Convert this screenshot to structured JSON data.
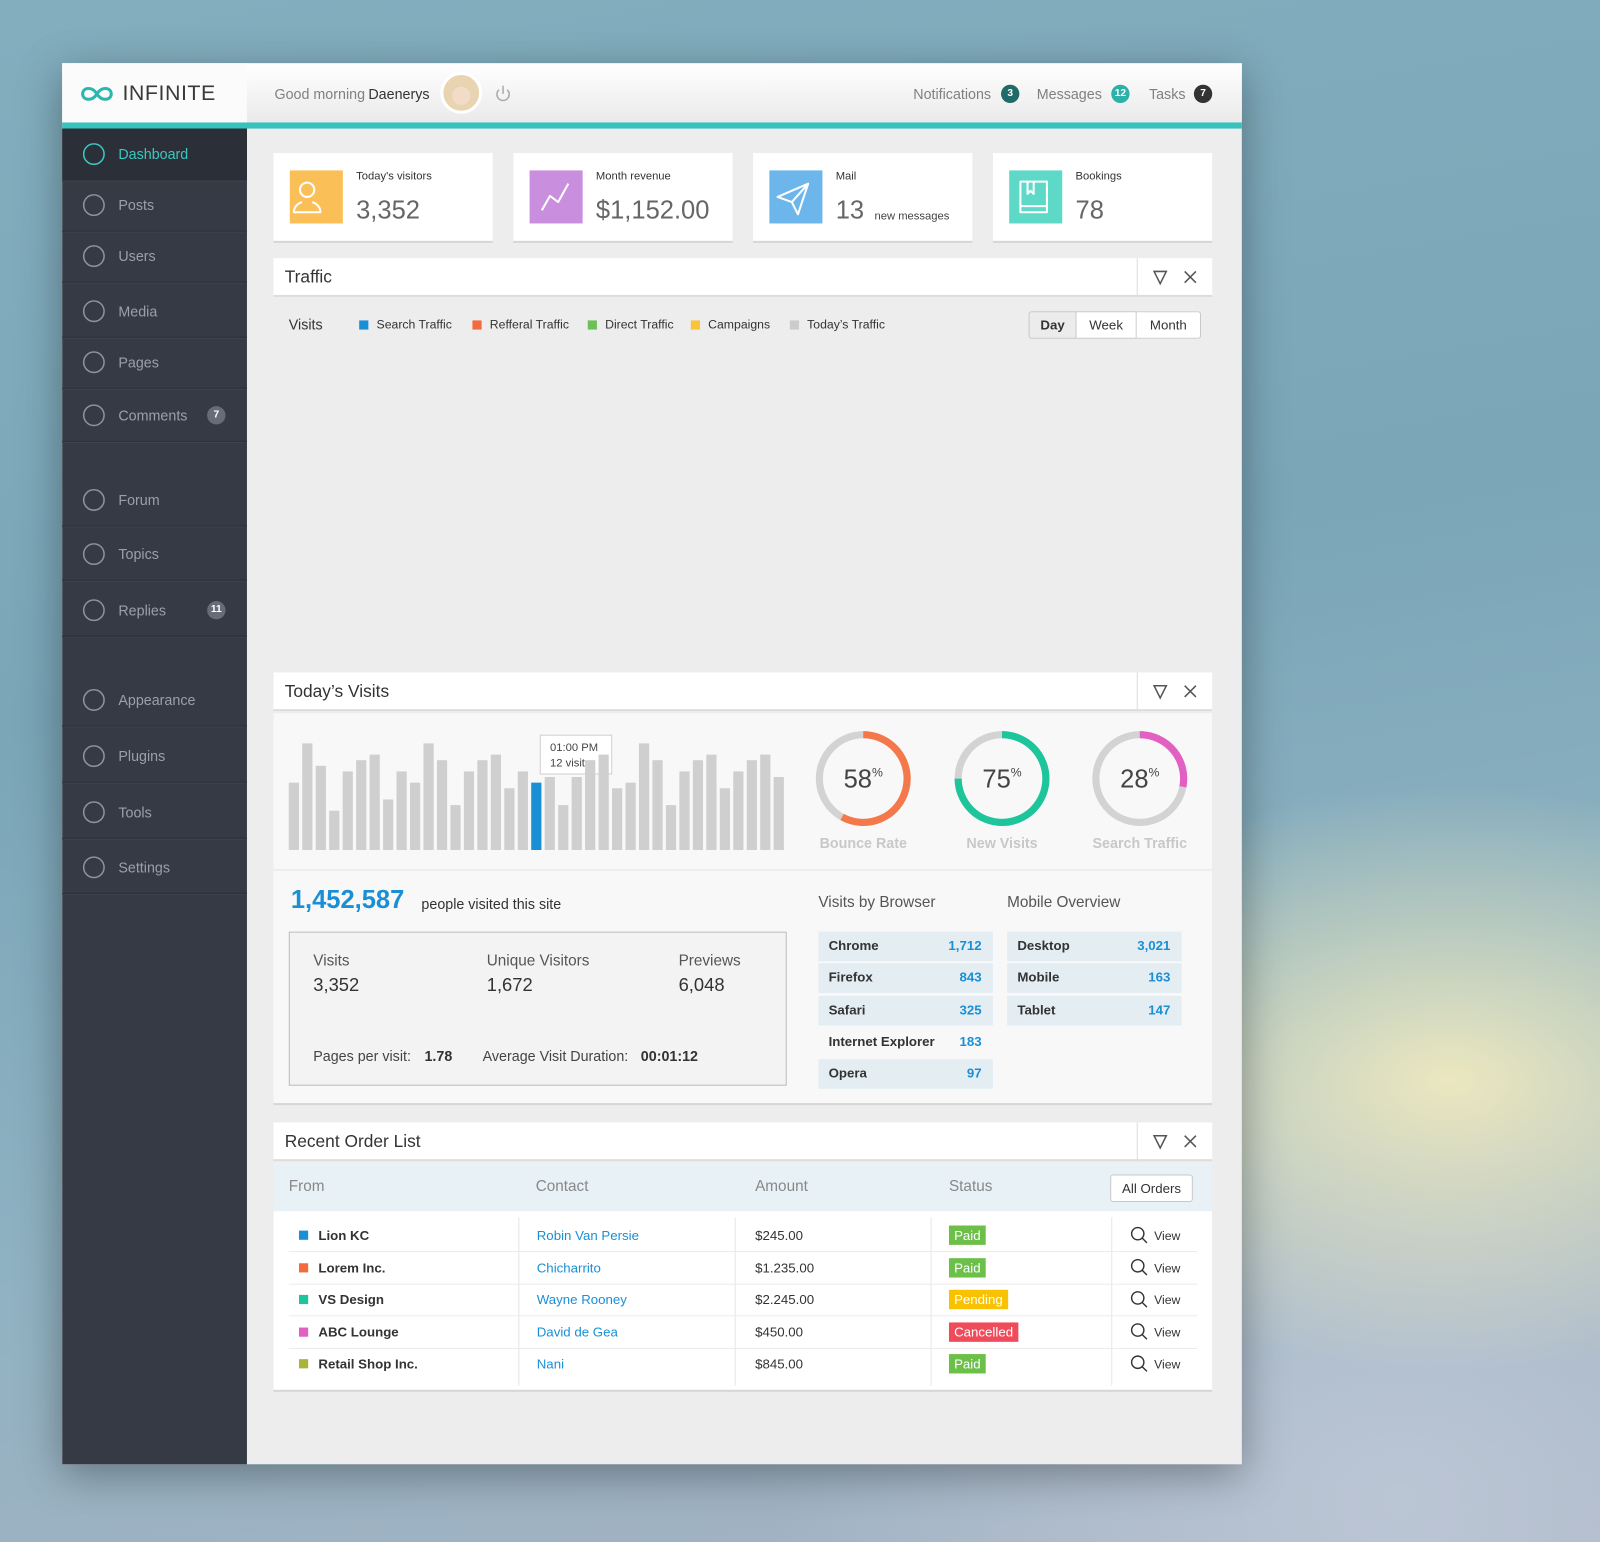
{
  "header": {
    "brand": "INFINITE",
    "greeting": "Good morning",
    "user": "Daenerys",
    "counters": [
      {
        "label": "Notifications",
        "count": "3",
        "color": "#1e6b67"
      },
      {
        "label": "Messages",
        "count": "12",
        "color": "#2bb1a8"
      },
      {
        "label": "Tasks",
        "count": "7",
        "color": "#333333"
      }
    ]
  },
  "sidebar": {
    "items": [
      {
        "label": "Dashboard"
      },
      {
        "label": "Posts"
      },
      {
        "label": "Users"
      },
      {
        "label": "Media"
      },
      {
        "label": "Pages"
      },
      {
        "label": "Comments",
        "badge": "7"
      },
      {
        "label": "Forum"
      },
      {
        "label": "Topics"
      },
      {
        "label": "Replies",
        "badge": "11"
      },
      {
        "label": "Appearance"
      },
      {
        "label": "Plugins"
      },
      {
        "label": "Tools"
      },
      {
        "label": "Settings"
      }
    ]
  },
  "stats": [
    {
      "label": "Today's visitors",
      "value": "3,352",
      "color": "#fbbf57"
    },
    {
      "label": "Month revenue",
      "value": "$1,152.00",
      "color": "#c98ede"
    },
    {
      "label": "Mail",
      "value": "13",
      "note": "new messages",
      "color": "#6db6ec"
    },
    {
      "label": "Bookings",
      "value": "78",
      "color": "#5fd9c7"
    }
  ],
  "traffic": {
    "title": "Traffic",
    "axis_label": "Visits",
    "series": [
      {
        "name": "Search Traffic",
        "color": "#1a8fd6"
      },
      {
        "name": "Refferal Traffic",
        "color": "#f26a3d"
      },
      {
        "name": "Direct Traffic",
        "color": "#6cc05a"
      },
      {
        "name": "Campaigns",
        "color": "#f9c43a"
      },
      {
        "name": "Today’s Traffic",
        "color": "#cccccc"
      }
    ],
    "ranges": [
      "Day",
      "Week",
      "Month"
    ]
  },
  "todays_visits": {
    "title": "Today’s Visits",
    "bars": {
      "values": [
        12,
        19,
        15,
        7,
        14,
        16,
        17,
        9,
        14,
        12,
        19,
        16,
        8,
        14,
        16,
        17,
        11,
        14,
        12,
        13,
        8,
        13,
        16,
        17,
        11,
        12,
        19,
        16,
        8,
        14,
        16,
        17,
        11,
        14,
        16,
        17,
        13
      ],
      "color": "#cfcfcf",
      "highlight_index": 18,
      "highlight_color": "#1a8fd6",
      "tooltip": {
        "time": "01:00 PM",
        "text": "12 visits"
      }
    },
    "donuts": [
      {
        "value": 58,
        "unit": "%",
        "label": "Bounce Rate",
        "color": "#f5784a"
      },
      {
        "value": 75,
        "unit": "%",
        "label": "New Visits",
        "color": "#1dc59b"
      },
      {
        "value": 28,
        "unit": "%",
        "label": "Search Traffic",
        "color": "#e160c2"
      }
    ],
    "total": "1,452,587",
    "total_text": "people visited this site",
    "summary": {
      "items": [
        {
          "label": "Visits",
          "value": "3,352"
        },
        {
          "label": "Unique Visitors",
          "value": "1,672"
        },
        {
          "label": "Previews",
          "value": "6,048"
        }
      ],
      "pages_label": "Pages per visit:",
      "pages_value": "1.78",
      "duration_label": "Average Visit Duration:",
      "duration_value": "00:01:12"
    },
    "browsers": {
      "title": "Visits by Browser",
      "rows": [
        [
          "Chrome",
          "1,712"
        ],
        [
          "Firefox",
          "843"
        ],
        [
          "Safari",
          "325"
        ],
        [
          "Internet Explorer",
          "183"
        ],
        [
          "Opera",
          "97"
        ]
      ]
    },
    "mobile": {
      "title": "Mobile Overview",
      "rows": [
        [
          "Desktop",
          "3,021"
        ],
        [
          "Mobile",
          "163"
        ],
        [
          "Tablet",
          "147"
        ]
      ]
    }
  },
  "orders": {
    "title": "Recent Order List",
    "columns": [
      "From",
      "Contact",
      "Amount",
      "Status"
    ],
    "button": "All Orders",
    "action": "View",
    "rows": [
      {
        "from": "Lion KC",
        "color": "#1a8fd6",
        "contact": "Robin Van Persie",
        "amount": "$245.00",
        "status": "Paid",
        "status_color": "#6cc04a"
      },
      {
        "from": "Lorem Inc.",
        "color": "#f26a3d",
        "contact": "Chicharrito",
        "amount": "$1.235.00",
        "status": "Paid",
        "status_color": "#6cc04a"
      },
      {
        "from": "VS Design",
        "color": "#1dc59b",
        "contact": "Wayne Rooney",
        "amount": "$2.245.00",
        "status": "Pending",
        "status_color": "#f9c200"
      },
      {
        "from": "ABC Lounge",
        "color": "#e160c2",
        "contact": "David de Gea",
        "amount": "$450.00",
        "status": "Cancelled",
        "status_color": "#f04b5a"
      },
      {
        "from": "Retail Shop Inc.",
        "color": "#a8b43a",
        "contact": "Nani",
        "amount": "$845.00",
        "status": "Paid",
        "status_color": "#6cc04a"
      }
    ]
  }
}
